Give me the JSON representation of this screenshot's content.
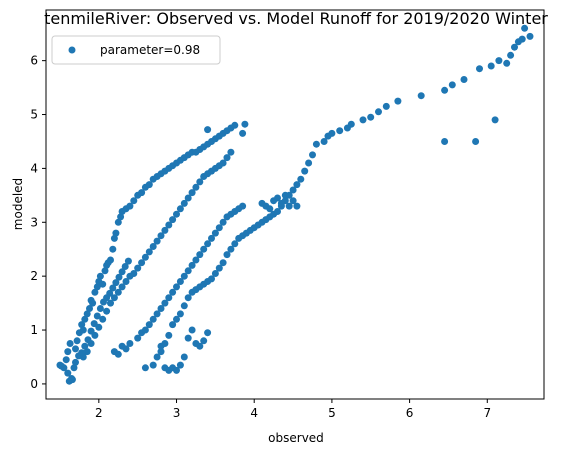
{
  "chart_data": {
    "type": "scatter",
    "title": "tenmileRiver: Observed vs. Model Runoff for 2019/2020 Winter",
    "xlabel": "observed",
    "ylabel": "modeled",
    "xlim": [
      1.32,
      7.73
    ],
    "ylim": [
      -0.28,
      6.94
    ],
    "xticks": [
      2,
      3,
      4,
      5,
      6,
      7
    ],
    "yticks": [
      0,
      1,
      2,
      3,
      4,
      5,
      6
    ],
    "grid": false,
    "legend_position": "top-left",
    "series": [
      {
        "name": "parameter=0.98",
        "color": "#1f77b4",
        "points": [
          [
            1.5,
            0.35
          ],
          [
            1.55,
            0.3
          ],
          [
            1.58,
            0.45
          ],
          [
            1.6,
            0.2
          ],
          [
            1.62,
            0.05
          ],
          [
            1.65,
            0.1
          ],
          [
            1.68,
            0.3
          ],
          [
            1.6,
            0.6
          ],
          [
            1.63,
            0.75
          ],
          [
            1.7,
            0.65
          ],
          [
            1.72,
            0.8
          ],
          [
            1.75,
            0.95
          ],
          [
            1.78,
            1.1
          ],
          [
            1.8,
            1.0
          ],
          [
            1.82,
            1.2
          ],
          [
            1.85,
            1.3
          ],
          [
            1.88,
            1.4
          ],
          [
            1.9,
            1.55
          ],
          [
            1.92,
            1.5
          ],
          [
            1.95,
            1.7
          ],
          [
            1.98,
            1.8
          ],
          [
            2.0,
            1.9
          ],
          [
            2.02,
            2.0
          ],
          [
            2.05,
            1.85
          ],
          [
            2.08,
            2.1
          ],
          [
            2.1,
            2.2
          ],
          [
            2.12,
            2.25
          ],
          [
            2.15,
            2.3
          ],
          [
            2.18,
            2.5
          ],
          [
            2.2,
            2.7
          ],
          [
            2.22,
            2.8
          ],
          [
            2.25,
            3.0
          ],
          [
            2.28,
            3.1
          ],
          [
            2.3,
            3.2
          ],
          [
            2.35,
            3.25
          ],
          [
            2.4,
            3.3
          ],
          [
            2.45,
            3.4
          ],
          [
            2.5,
            3.5
          ],
          [
            2.55,
            3.55
          ],
          [
            2.6,
            3.65
          ],
          [
            2.65,
            3.7
          ],
          [
            2.7,
            3.8
          ],
          [
            2.75,
            3.85
          ],
          [
            2.8,
            3.9
          ],
          [
            2.85,
            3.95
          ],
          [
            2.9,
            4.0
          ],
          [
            2.95,
            4.05
          ],
          [
            3.0,
            4.1
          ],
          [
            3.05,
            4.15
          ],
          [
            3.1,
            4.2
          ],
          [
            3.15,
            4.25
          ],
          [
            3.2,
            4.3
          ],
          [
            3.25,
            4.3
          ],
          [
            3.3,
            4.35
          ],
          [
            3.35,
            4.4
          ],
          [
            3.4,
            4.45
          ],
          [
            3.45,
            4.5
          ],
          [
            3.5,
            4.55
          ],
          [
            3.55,
            4.6
          ],
          [
            3.6,
            4.65
          ],
          [
            3.65,
            4.7
          ],
          [
            3.7,
            4.75
          ],
          [
            3.75,
            4.8
          ],
          [
            3.85,
            4.65
          ],
          [
            3.88,
            4.82
          ],
          [
            3.4,
            4.72
          ],
          [
            1.8,
            0.5
          ],
          [
            1.85,
            0.6
          ],
          [
            1.9,
            0.75
          ],
          [
            1.95,
            0.9
          ],
          [
            2.0,
            1.05
          ],
          [
            2.05,
            1.2
          ],
          [
            2.1,
            1.35
          ],
          [
            2.15,
            1.5
          ],
          [
            2.2,
            1.6
          ],
          [
            2.25,
            1.7
          ],
          [
            2.3,
            1.8
          ],
          [
            2.35,
            1.9
          ],
          [
            2.4,
            2.0
          ],
          [
            2.45,
            2.05
          ],
          [
            2.5,
            2.15
          ],
          [
            2.55,
            2.25
          ],
          [
            2.6,
            2.35
          ],
          [
            2.65,
            2.45
          ],
          [
            2.7,
            2.55
          ],
          [
            2.75,
            2.65
          ],
          [
            2.8,
            2.75
          ],
          [
            2.85,
            2.85
          ],
          [
            2.9,
            2.95
          ],
          [
            2.95,
            3.05
          ],
          [
            3.0,
            3.15
          ],
          [
            3.05,
            3.25
          ],
          [
            3.1,
            3.35
          ],
          [
            3.15,
            3.45
          ],
          [
            3.2,
            3.55
          ],
          [
            3.25,
            3.65
          ],
          [
            3.3,
            3.75
          ],
          [
            3.35,
            3.85
          ],
          [
            3.4,
            3.9
          ],
          [
            3.45,
            3.95
          ],
          [
            3.5,
            4.0
          ],
          [
            3.55,
            4.05
          ],
          [
            3.6,
            4.1
          ],
          [
            3.65,
            4.2
          ],
          [
            3.7,
            4.3
          ],
          [
            2.2,
            0.6
          ],
          [
            2.25,
            0.55
          ],
          [
            2.3,
            0.7
          ],
          [
            2.35,
            0.65
          ],
          [
            2.4,
            0.75
          ],
          [
            2.5,
            0.85
          ],
          [
            2.55,
            0.95
          ],
          [
            2.6,
            1.0
          ],
          [
            2.65,
            1.1
          ],
          [
            2.7,
            1.2
          ],
          [
            2.75,
            1.3
          ],
          [
            2.8,
            1.4
          ],
          [
            2.85,
            1.5
          ],
          [
            2.9,
            1.6
          ],
          [
            2.95,
            1.7
          ],
          [
            3.0,
            1.8
          ],
          [
            3.05,
            1.9
          ],
          [
            3.1,
            2.0
          ],
          [
            3.15,
            2.1
          ],
          [
            3.2,
            2.2
          ],
          [
            3.25,
            2.3
          ],
          [
            3.3,
            2.4
          ],
          [
            3.35,
            2.5
          ],
          [
            3.4,
            2.6
          ],
          [
            3.45,
            2.7
          ],
          [
            3.5,
            2.8
          ],
          [
            3.55,
            2.9
          ],
          [
            3.6,
            3.0
          ],
          [
            3.65,
            3.1
          ],
          [
            3.7,
            3.15
          ],
          [
            3.75,
            3.2
          ],
          [
            3.8,
            3.25
          ],
          [
            3.85,
            3.3
          ],
          [
            2.6,
            0.3
          ],
          [
            2.7,
            0.35
          ],
          [
            2.75,
            0.5
          ],
          [
            2.8,
            0.6
          ],
          [
            2.85,
            0.3
          ],
          [
            2.9,
            0.25
          ],
          [
            2.95,
            0.3
          ],
          [
            3.0,
            0.25
          ],
          [
            3.05,
            0.35
          ],
          [
            3.1,
            0.5
          ],
          [
            2.8,
            0.7
          ],
          [
            2.85,
            0.75
          ],
          [
            2.9,
            0.9
          ],
          [
            2.95,
            1.1
          ],
          [
            3.0,
            1.2
          ],
          [
            3.05,
            1.3
          ],
          [
            3.1,
            1.45
          ],
          [
            3.15,
            1.6
          ],
          [
            3.2,
            1.7
          ],
          [
            3.25,
            1.75
          ],
          [
            3.3,
            1.8
          ],
          [
            3.35,
            1.85
          ],
          [
            3.4,
            1.9
          ],
          [
            3.45,
            1.95
          ],
          [
            3.5,
            2.05
          ],
          [
            3.55,
            2.15
          ],
          [
            3.6,
            2.25
          ],
          [
            3.65,
            2.4
          ],
          [
            3.7,
            2.5
          ],
          [
            3.75,
            2.6
          ],
          [
            3.8,
            2.7
          ],
          [
            3.85,
            2.75
          ],
          [
            3.9,
            2.8
          ],
          [
            3.95,
            2.85
          ],
          [
            4.0,
            2.9
          ],
          [
            4.05,
            2.95
          ],
          [
            4.1,
            3.0
          ],
          [
            4.15,
            3.05
          ],
          [
            4.2,
            3.1
          ],
          [
            4.25,
            3.15
          ],
          [
            4.3,
            3.2
          ],
          [
            4.35,
            3.3
          ],
          [
            4.4,
            3.4
          ],
          [
            4.45,
            3.5
          ],
          [
            4.5,
            3.6
          ],
          [
            4.55,
            3.7
          ],
          [
            4.6,
            3.8
          ],
          [
            4.65,
            3.95
          ],
          [
            4.7,
            4.1
          ],
          [
            4.75,
            4.25
          ],
          [
            4.8,
            4.45
          ],
          [
            4.9,
            4.5
          ],
          [
            4.95,
            4.6
          ],
          [
            5.0,
            4.65
          ],
          [
            5.1,
            4.7
          ],
          [
            5.2,
            4.75
          ],
          [
            5.25,
            4.82
          ],
          [
            5.4,
            4.9
          ],
          [
            5.5,
            4.95
          ],
          [
            5.6,
            5.05
          ],
          [
            5.7,
            5.15
          ],
          [
            5.85,
            5.25
          ],
          [
            6.15,
            5.35
          ],
          [
            6.45,
            5.45
          ],
          [
            6.55,
            5.55
          ],
          [
            6.7,
            5.65
          ],
          [
            6.9,
            5.85
          ],
          [
            7.05,
            5.9
          ],
          [
            7.15,
            6.0
          ],
          [
            7.25,
            5.95
          ],
          [
            7.3,
            6.1
          ],
          [
            7.35,
            6.25
          ],
          [
            7.4,
            6.35
          ],
          [
            7.45,
            6.4
          ],
          [
            7.48,
            6.6
          ],
          [
            7.55,
            6.45
          ],
          [
            6.45,
            4.5
          ],
          [
            6.85,
            4.5
          ],
          [
            7.1,
            4.9
          ],
          [
            4.1,
            3.35
          ],
          [
            4.15,
            3.3
          ],
          [
            4.2,
            3.25
          ],
          [
            4.25,
            3.4
          ],
          [
            4.3,
            3.45
          ],
          [
            4.35,
            3.35
          ],
          [
            4.4,
            3.5
          ],
          [
            4.45,
            3.3
          ],
          [
            4.5,
            3.4
          ],
          [
            4.55,
            3.3
          ],
          [
            3.3,
            0.7
          ],
          [
            3.35,
            0.8
          ],
          [
            3.4,
            0.95
          ],
          [
            3.2,
            1.0
          ],
          [
            3.15,
            0.85
          ],
          [
            3.25,
            0.75
          ],
          [
            1.52,
            0.33
          ],
          [
            1.66,
            0.08
          ],
          [
            1.7,
            0.4
          ],
          [
            1.74,
            0.52
          ],
          [
            1.78,
            0.58
          ],
          [
            1.82,
            0.7
          ],
          [
            1.86,
            0.82
          ],
          [
            1.9,
            0.98
          ],
          [
            1.94,
            1.12
          ],
          [
            1.98,
            1.26
          ],
          [
            2.02,
            1.4
          ],
          [
            2.06,
            1.52
          ],
          [
            2.1,
            1.6
          ],
          [
            2.14,
            1.68
          ],
          [
            2.18,
            1.78
          ],
          [
            2.22,
            1.88
          ],
          [
            2.26,
            1.98
          ],
          [
            2.3,
            2.08
          ],
          [
            2.34,
            2.18
          ],
          [
            2.38,
            2.28
          ]
        ]
      }
    ]
  }
}
